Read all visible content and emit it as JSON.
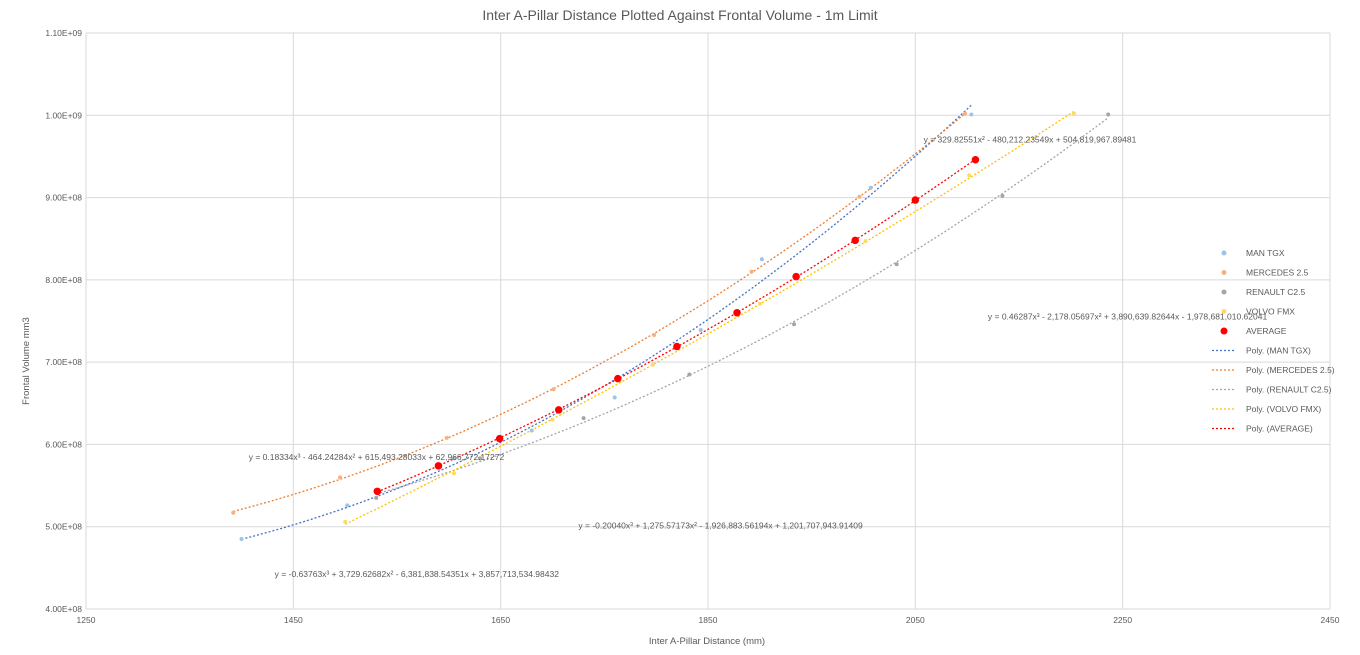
{
  "chart_data": {
    "type": "scatter",
    "title": "Inter A-Pillar Distance Plotted Against Frontal Volume    - 1m Limit",
    "xlabel": "Inter A-Pillar Distance (mm)",
    "ylabel": "Frontal Volume mm3",
    "xlim": [
      1250,
      2450
    ],
    "ylim": [
      400000000,
      1100000000
    ],
    "x_ticks": [
      1250,
      1450,
      1650,
      1850,
      2050,
      2250,
      2450
    ],
    "y_ticks": [
      400000000,
      500000000,
      600000000,
      700000000,
      800000000,
      900000000,
      1000000000,
      1100000000
    ],
    "x_tick_labels": [
      "1250",
      "1450",
      "1650",
      "1850",
      "2050",
      "2250",
      "2450"
    ],
    "y_tick_labels": [
      "4.00E+08",
      "5.00E+08",
      "6.00E+08",
      "7.00E+08",
      "8.00E+08",
      "9.00E+08",
      "1.00E+09",
      "1.10E+09"
    ],
    "grid": true,
    "legend_position": "right",
    "series": [
      {
        "name": "MAN TGX",
        "color": "#9dc3e6",
        "marker_size": 4,
        "points": [
          [
            1400,
            485000000
          ],
          [
            1502,
            526000000
          ],
          [
            1605,
            583000000
          ],
          [
            1680,
            617000000
          ],
          [
            1760,
            657000000
          ],
          [
            1843,
            739000000
          ],
          [
            1902,
            825000000
          ],
          [
            2007,
            912000000
          ],
          [
            2104,
            1001000000
          ]
        ],
        "x": [
          1400,
          1502,
          1605,
          1680,
          1760,
          1843,
          1902,
          2007,
          2104
        ],
        "y": [
          485000000,
          526000000,
          583000000,
          617000000,
          657000000,
          739000000,
          825000000,
          912000000,
          1001000000
        ]
      },
      {
        "name": "MERCEDES 2.5",
        "color": "#f4b183",
        "marker_size": 4,
        "points": [
          [
            1392,
            517000000
          ],
          [
            1495,
            560000000
          ],
          [
            1598,
            608000000
          ],
          [
            1701,
            667000000
          ],
          [
            1798,
            733000000
          ],
          [
            1892,
            810000000
          ],
          [
            1996,
            901000000
          ],
          [
            2098,
            1002000000
          ]
        ],
        "x": [
          1392,
          1495,
          1598,
          1701,
          1798,
          1892,
          1996,
          2098
        ],
        "y": [
          517000000,
          560000000,
          608000000,
          667000000,
          733000000,
          810000000,
          901000000,
          1002000000
        ]
      },
      {
        "name": "RENAULT C2.5",
        "color": "#a5a5a5",
        "marker_size": 4,
        "points": [
          [
            1530,
            535000000
          ],
          [
            1630,
            583000000
          ],
          [
            1730,
            632000000
          ],
          [
            1832,
            685000000
          ],
          [
            1933,
            746000000
          ],
          [
            2032,
            819000000
          ],
          [
            2134,
            902000000
          ],
          [
            2236,
            1001000000
          ]
        ],
        "x": [
          1530,
          1630,
          1730,
          1832,
          1933,
          2032,
          2134,
          2236
        ],
        "y": [
          535000000,
          583000000,
          632000000,
          685000000,
          746000000,
          819000000,
          902000000,
          1001000000
        ]
      },
      {
        "name": "VOLVO FMX",
        "color": "#ffd966",
        "marker_size": 4,
        "points": [
          [
            1500,
            506000000
          ],
          [
            1605,
            565000000
          ],
          [
            1700,
            630000000
          ],
          [
            1797,
            697000000
          ],
          [
            1900,
            771000000
          ],
          [
            2002,
            847000000
          ],
          [
            2102,
            927000000
          ],
          [
            2203,
            1002000000
          ]
        ],
        "x": [
          1500,
          1605,
          1700,
          1797,
          1900,
          2002,
          2102,
          2203
        ],
        "y": [
          506000000,
          565000000,
          630000000,
          697000000,
          771000000,
          847000000,
          927000000,
          1002000000
        ]
      },
      {
        "name": "AVERAGE",
        "color": "#ff0000",
        "marker_size": 6.5,
        "points": [
          [
            1531,
            543000000
          ],
          [
            1590,
            574000000
          ],
          [
            1649,
            607000000
          ],
          [
            1706,
            642000000
          ],
          [
            1763,
            680000000
          ],
          [
            1820,
            719000000
          ],
          [
            1878,
            760000000
          ],
          [
            1935,
            804000000
          ],
          [
            1992,
            848000000
          ],
          [
            2050,
            897000000
          ],
          [
            2108,
            946000000
          ]
        ],
        "x": [
          1531,
          1590,
          1649,
          1706,
          1763,
          1820,
          1878,
          1935,
          1992,
          2050,
          2108
        ],
        "y": [
          543000000,
          574000000,
          607000000,
          642000000,
          680000000,
          719000000,
          760000000,
          804000000,
          848000000,
          897000000,
          946000000
        ]
      }
    ],
    "trendlines": [
      {
        "name": "Poly. (MAN TGX)",
        "series": "MAN TGX",
        "color": "#4472c4",
        "type": "polynomial"
      },
      {
        "name": "Poly. (MERCEDES 2.5)",
        "series": "MERCEDES 2.5",
        "color": "#ed7d31",
        "type": "polynomial"
      },
      {
        "name": "Poly. (RENAULT C2.5)",
        "series": "RENAULT C2.5",
        "color": "#a5a5a5",
        "type": "polynomial"
      },
      {
        "name": "Poly. (VOLVO FMX)",
        "series": "VOLVO FMX",
        "color": "#ffc000",
        "type": "polynomial"
      },
      {
        "name": "Poly. (AVERAGE)",
        "series": "AVERAGE",
        "color": "#ff0000",
        "type": "polynomial"
      }
    ],
    "annotations": [
      {
        "text": "y = 329.82551x² - 480,212.23549x + 504,819,967.89481",
        "data_x": 2058,
        "data_y": 967000000
      },
      {
        "text": "y = 0.46287x³ - 2,178.05697x² + 3,890,639.82644x - 1,978,681,010.62041",
        "data_x": 2120,
        "data_y": 752000000
      },
      {
        "text": "y = 0.18334x³ - 464.24284x² + 615,493.28033x + 62,966,772.17272",
        "data_x": 1407,
        "data_y": 581000000
      },
      {
        "text": "y = -0.20040x³ + 1,275.57173x² - 1,926,883.56194x + 1,201,707,943.91409",
        "data_x": 1725,
        "data_y": 498000000
      },
      {
        "text": "y = -0.63763x³ + 3,729.62682x² - 6,381,838.54351x + 3,857,713,534.98432",
        "data_x": 1432,
        "data_y": 439000000
      }
    ]
  }
}
